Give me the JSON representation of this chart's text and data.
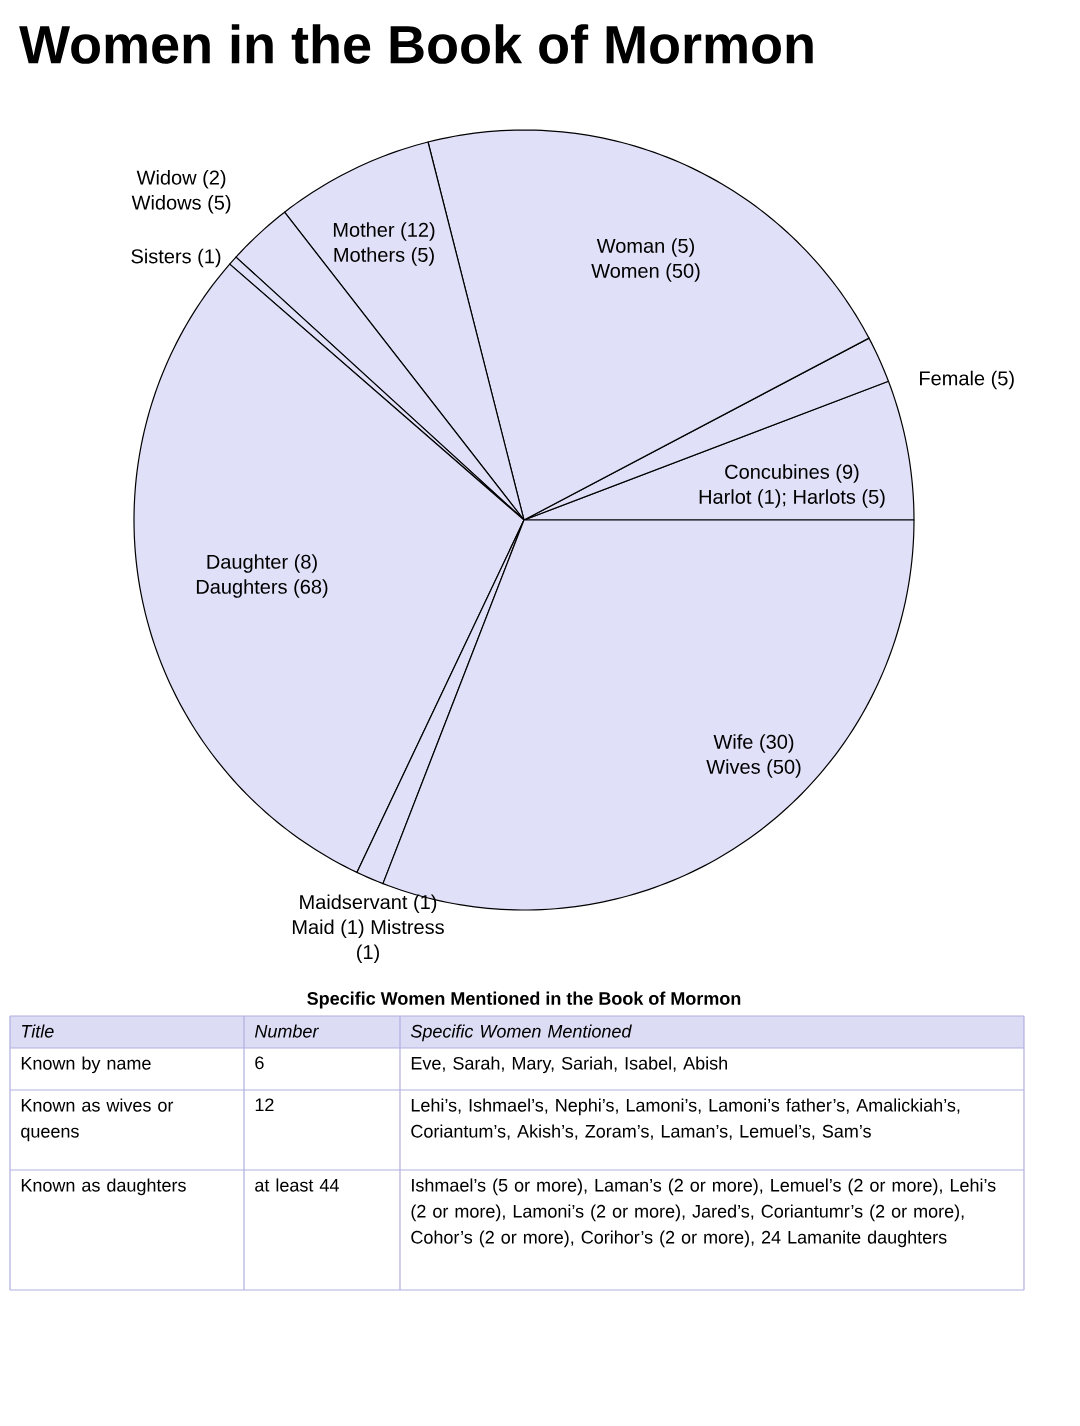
{
  "chart_data": {
    "type": "pie",
    "title": "Women in the Book of Mormon",
    "categories": [
      "Concubines (9) Harlot (1); Harlots (5)",
      "Female (5)",
      "Woman (5) Women (50)",
      "Mother (12) Mothers (5)",
      "Widow (2) Widows (5)",
      "Sisters (1)",
      "Daughter (8) Daughters (68)",
      "Maidservant (1) Maid (1) Mistress (1)",
      "Wife (30) Wives (50)"
    ],
    "values": [
      15,
      5,
      55,
      17,
      7,
      1,
      76,
      3,
      80
    ],
    "colors": [
      "#e0e0f8",
      "#e0e0f8",
      "#e0e0f8",
      "#e0e0f8",
      "#e0e0f8",
      "#e0e0f8",
      "#e0e0f8",
      "#e0e0f8",
      "#e0e0f8"
    ],
    "annotations": [
      "Specific Women Mentioned in the Book of Mormon",
      "Title",
      "Number",
      "Specific Women Mentioned",
      "Known by name",
      "6",
      "Eve, Sarah, Mary, Sariah, Isabel, Abish",
      "Known as wives or queens",
      "12",
      "Lehi’s, Ishmael’s, Nephi’s, Lamoni’s, Lamoni’s father’s, Amalickiah’s, Coriantum’s, Akish’s, Zoram’s, Laman’s, Lemuel’s, Sam’s",
      "Known as daughters",
      "at least 44",
      "Ishmael’s (5 or more), Laman’s (2 or more), Lemuel’s (2 or more), Lehi’s (2 or more), Lamoni’s (2 or more), Jared’s, Coriantumr’s (2 or more), Cohor’s (2 or more), Corihor’s (2 or more), 24 Lamanite daughters"
    ]
  }
}
